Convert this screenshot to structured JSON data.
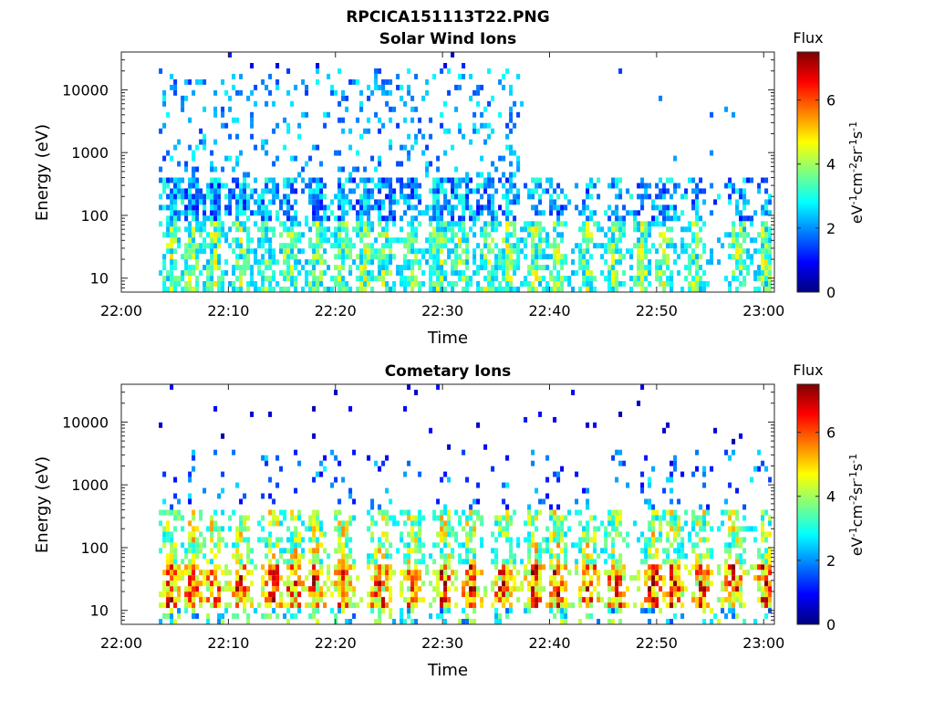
{
  "figure": {
    "title": "RPCICA151113T22.PNG"
  },
  "colorbar_label": "Flux",
  "colorbar_unit_parts": [
    "eV",
    "-1",
    "cm",
    "-2",
    "sr",
    "-1",
    "s",
    "-1"
  ],
  "colormap": [
    "#00007f",
    "#0000ff",
    "#007fff",
    "#00ffff",
    "#7fff7f",
    "#ffff00",
    "#ff7f00",
    "#ff0000",
    "#7f0000"
  ],
  "chart_data": [
    {
      "type": "heatmap",
      "title": "Solar Wind Ions",
      "xlabel": "Time",
      "ylabel": "Energy (eV)",
      "y_scale": "log",
      "ylim": [
        6,
        40000
      ],
      "x_ticks": [
        "22:00",
        "22:10",
        "22:20",
        "22:30",
        "22:40",
        "22:50",
        "23:00"
      ],
      "x_range_minutes": [
        0,
        61
      ],
      "y_ticks": [
        "10",
        "100",
        "1000",
        "10000"
      ],
      "colorbar": {
        "range": [
          0,
          7.5
        ],
        "ticks": [
          "0",
          "2",
          "4",
          "6"
        ]
      },
      "data_start_minute": 3.5,
      "data_end_minute": 60.5,
      "bursts_minute": [
        4.5,
        6.5,
        8.5,
        11.0,
        13.5,
        15.5,
        18.0,
        20.5,
        22.5,
        24.5,
        27.0,
        29.5,
        31.5,
        34.0,
        36.0,
        38.5,
        40.5,
        43.5,
        46.0,
        48.5,
        50.5,
        53.5,
        57.5,
        60.0
      ],
      "peak_flux": 5.5
    },
    {
      "type": "heatmap",
      "title": "Cometary Ions",
      "xlabel": "Time",
      "ylabel": "Energy (eV)",
      "y_scale": "log",
      "ylim": [
        6,
        40000
      ],
      "x_ticks": [
        "22:00",
        "22:10",
        "22:20",
        "22:30",
        "22:40",
        "22:50",
        "23:00"
      ],
      "x_range_minutes": [
        0,
        61
      ],
      "y_ticks": [
        "10",
        "100",
        "1000",
        "10000"
      ],
      "colorbar": {
        "range": [
          0,
          7.5
        ],
        "ticks": [
          "0",
          "2",
          "4",
          "6"
        ]
      },
      "data_start_minute": 3.5,
      "data_end_minute": 60.5,
      "bursts_minute": [
        4.5,
        6.5,
        8.5,
        11.0,
        14.0,
        16.0,
        18.0,
        20.5,
        24.0,
        27.0,
        30.0,
        32.5,
        35.5,
        38.5,
        40.5,
        43.5,
        46.0,
        49.5,
        51.5,
        54.0,
        57.0,
        60.0
      ],
      "peak_flux": 7.4
    }
  ]
}
